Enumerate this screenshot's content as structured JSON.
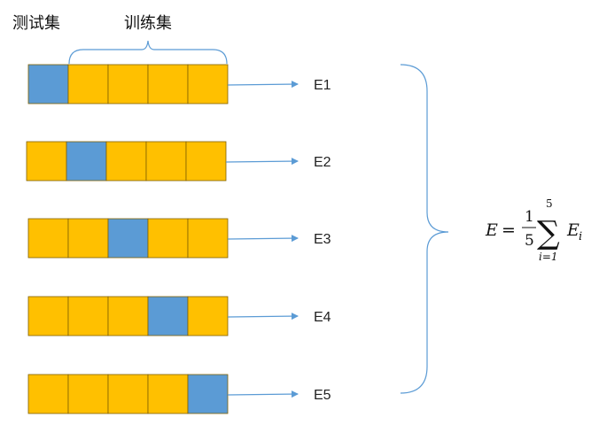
{
  "labels": {
    "test_set": "测试集",
    "train_set": "训练集"
  },
  "colors": {
    "test_fill": "#5B9BD5",
    "train_fill": "#FFC000",
    "cell_border": "#7F6000",
    "arrow": "#5B9BD5",
    "brace": "#5B9BD5"
  },
  "folds": [
    {
      "label": "E1",
      "cells": [
        "test",
        "train",
        "train",
        "train",
        "train"
      ]
    },
    {
      "label": "E2",
      "cells": [
        "train",
        "test",
        "train",
        "train",
        "train"
      ]
    },
    {
      "label": "E3",
      "cells": [
        "train",
        "train",
        "test",
        "train",
        "train"
      ]
    },
    {
      "label": "E4",
      "cells": [
        "train",
        "train",
        "train",
        "test",
        "train"
      ]
    },
    {
      "label": "E5",
      "cells": [
        "train",
        "train",
        "train",
        "train",
        "test"
      ]
    }
  ],
  "formula": {
    "lhs": "E",
    "equals": "=",
    "numerator": "1",
    "denominator": "5",
    "sum_symbol": "∑",
    "sum_upper": "5",
    "sum_lower": "i=1",
    "term": "E",
    "term_subscript": "i"
  }
}
